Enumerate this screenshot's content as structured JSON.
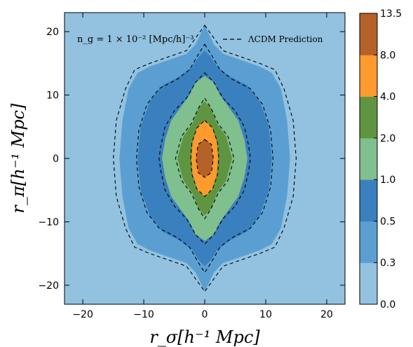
{
  "chart_data": {
    "type": "contour",
    "xlabel": "r_σ[h⁻¹ Mpc]",
    "ylabel": "r_π[h⁻¹ Mpc]",
    "xlim": [
      -23,
      23
    ],
    "ylim": [
      -23,
      23
    ],
    "x_ticks": [
      -20,
      -10,
      0,
      10,
      20
    ],
    "y_ticks": [
      -20,
      -10,
      0,
      10,
      20
    ],
    "x_tick_labels": [
      "−20",
      "−10",
      "0",
      "10",
      "20"
    ],
    "y_tick_labels": [
      "−20",
      "−10",
      "0",
      "10",
      "20"
    ],
    "annotation": "n_g = 1 × 10⁻² [Mpc/h]⁻³",
    "legend": {
      "placement": "top-right",
      "entries": [
        {
          "label": "ΛCDM Prediction",
          "style": "dashed"
        }
      ]
    },
    "colorbar": {
      "levels": [
        0.0,
        0.3,
        0.5,
        1.0,
        2.0,
        4.0,
        8.0,
        13.5
      ],
      "level_labels": [
        "0.0",
        "0.3",
        "0.5",
        "1.0",
        "2.0",
        "4.0",
        "8.0",
        "13.5"
      ],
      "colors": [
        "#92c2df",
        "#5b9fd2",
        "#3a7fbe",
        "#80bf8e",
        "#5f9540",
        "#ff9a2e",
        "#b4612a"
      ]
    },
    "regions": [
      {
        "level": 0.3,
        "outline": [
          [
            0,
            21
          ],
          [
            1.5,
            18
          ],
          [
            3,
            16.5
          ],
          [
            6,
            15.5
          ],
          [
            9,
            14.5
          ],
          [
            11,
            13.5
          ],
          [
            12.5,
            11
          ],
          [
            13.5,
            6
          ],
          [
            14,
            0
          ],
          [
            13.5,
            -6
          ],
          [
            12.5,
            -11
          ],
          [
            11,
            -13.5
          ],
          [
            9,
            -14.5
          ],
          [
            6,
            -15.5
          ],
          [
            3,
            -16.5
          ],
          [
            1.5,
            -18
          ],
          [
            0,
            -21
          ],
          [
            -1.5,
            -18
          ],
          [
            -3,
            -16.5
          ],
          [
            -6,
            -15.5
          ],
          [
            -9,
            -14.5
          ],
          [
            -11,
            -13.5
          ],
          [
            -12.5,
            -11
          ],
          [
            -13.5,
            -6
          ],
          [
            -14,
            0
          ],
          [
            -13.5,
            6
          ],
          [
            -12.5,
            11
          ],
          [
            -11,
            13.5
          ],
          [
            -9,
            14.5
          ],
          [
            -6,
            15.5
          ],
          [
            -3,
            16.5
          ],
          [
            -1.5,
            18
          ]
        ]
      },
      {
        "level": 0.5,
        "outline": [
          [
            0,
            17
          ],
          [
            1,
            16
          ],
          [
            2,
            14.5
          ],
          [
            4,
            13
          ],
          [
            7,
            11.5
          ],
          [
            9,
            9
          ],
          [
            10.5,
            5
          ],
          [
            11,
            0
          ],
          [
            10.5,
            -5
          ],
          [
            9,
            -9
          ],
          [
            7,
            -11.5
          ],
          [
            4,
            -13
          ],
          [
            2,
            -14.5
          ],
          [
            1,
            -16
          ],
          [
            0,
            -17
          ],
          [
            -1,
            -16
          ],
          [
            -2,
            -14.5
          ],
          [
            -4,
            -13
          ],
          [
            -7,
            -11.5
          ],
          [
            -9,
            -9
          ],
          [
            -10.5,
            -5
          ],
          [
            -11,
            0
          ],
          [
            -10.5,
            5
          ],
          [
            -9,
            9
          ],
          [
            -7,
            11.5
          ],
          [
            -4,
            13
          ],
          [
            -2,
            14.5
          ],
          [
            -1,
            16
          ]
        ]
      },
      {
        "level": 1.0,
        "outline": [
          [
            0,
            13
          ],
          [
            1.5,
            12
          ],
          [
            2.5,
            10
          ],
          [
            4,
            8
          ],
          [
            5.5,
            6
          ],
          [
            6.5,
            3
          ],
          [
            7,
            0
          ],
          [
            6.5,
            -3
          ],
          [
            5.5,
            -6
          ],
          [
            4,
            -8
          ],
          [
            2.5,
            -10
          ],
          [
            1.5,
            -12
          ],
          [
            0,
            -13
          ],
          [
            -1.5,
            -12
          ],
          [
            -2.5,
            -10
          ],
          [
            -4,
            -8
          ],
          [
            -5.5,
            -6
          ],
          [
            -6.5,
            -3
          ],
          [
            -7,
            0
          ],
          [
            -6.5,
            3
          ],
          [
            -5.5,
            6
          ],
          [
            -4,
            8
          ],
          [
            -2.5,
            10
          ],
          [
            -1.5,
            12
          ]
        ]
      },
      {
        "level": 2.0,
        "outline": [
          [
            0,
            9
          ],
          [
            1,
            8
          ],
          [
            2,
            5.5
          ],
          [
            3.5,
            3.5
          ],
          [
            4.5,
            0
          ],
          [
            3.5,
            -3.5
          ],
          [
            2,
            -5.5
          ],
          [
            1,
            -8
          ],
          [
            0,
            -9
          ],
          [
            -1,
            -8
          ],
          [
            -2,
            -5.5
          ],
          [
            -3.5,
            -3.5
          ],
          [
            -4.5,
            0
          ],
          [
            -3.5,
            3.5
          ],
          [
            -2,
            5.5
          ],
          [
            -1,
            8
          ]
        ]
      },
      {
        "level": 4.0,
        "outline": [
          [
            0,
            6
          ],
          [
            1.2,
            5
          ],
          [
            2,
            2.5
          ],
          [
            2.2,
            0
          ],
          [
            2,
            -2.5
          ],
          [
            1.2,
            -5
          ],
          [
            0,
            -6
          ],
          [
            -1.2,
            -5
          ],
          [
            -2,
            -2.5
          ],
          [
            -2.2,
            0
          ],
          [
            -2,
            2.5
          ],
          [
            -1.2,
            5
          ]
        ]
      },
      {
        "level": 8.0,
        "outline": [
          [
            0,
            3
          ],
          [
            1,
            2.3
          ],
          [
            1.4,
            0
          ],
          [
            1,
            -2.3
          ],
          [
            0,
            -3
          ],
          [
            -1,
            -2.3
          ],
          [
            -1.4,
            0
          ],
          [
            -1,
            2.3
          ]
        ]
      }
    ],
    "model_contours": [
      {
        "level": 0.3,
        "outline": [
          [
            0,
            21
          ],
          [
            1.5,
            19
          ],
          [
            3,
            17
          ],
          [
            6,
            16
          ],
          [
            9,
            15
          ],
          [
            11.5,
            14
          ],
          [
            13,
            11
          ],
          [
            14.5,
            6
          ],
          [
            15,
            0
          ],
          [
            14.5,
            -6
          ],
          [
            13,
            -11
          ],
          [
            11.5,
            -14
          ],
          [
            9,
            -15
          ],
          [
            6,
            -16
          ],
          [
            3,
            -17
          ],
          [
            1.5,
            -19
          ],
          [
            0,
            -21
          ],
          [
            -1.5,
            -19
          ],
          [
            -3,
            -17
          ],
          [
            -6,
            -16
          ],
          [
            -9,
            -15
          ],
          [
            -11.5,
            -14
          ],
          [
            -13,
            -11
          ],
          [
            -14.5,
            -6
          ],
          [
            -15,
            0
          ],
          [
            -14.5,
            6
          ],
          [
            -13,
            11
          ],
          [
            -11.5,
            14
          ],
          [
            -9,
            15
          ],
          [
            -6,
            16
          ],
          [
            -3,
            17
          ],
          [
            -1.5,
            19
          ]
        ]
      },
      {
        "level": 0.5,
        "outline": [
          [
            0,
            18
          ],
          [
            1,
            16.5
          ],
          [
            2.5,
            14
          ],
          [
            4.5,
            12.5
          ],
          [
            7.5,
            11
          ],
          [
            9.5,
            8.5
          ],
          [
            10.8,
            4.5
          ],
          [
            11.2,
            0
          ],
          [
            10.8,
            -4.5
          ],
          [
            9.5,
            -8.5
          ],
          [
            7.5,
            -11
          ],
          [
            4.5,
            -12.5
          ],
          [
            2.5,
            -14
          ],
          [
            1,
            -16.5
          ],
          [
            0,
            -18
          ],
          [
            -1,
            -16.5
          ],
          [
            -2.5,
            -14
          ],
          [
            -4.5,
            -12.5
          ],
          [
            -7.5,
            -11
          ],
          [
            -9.5,
            -8.5
          ],
          [
            -10.8,
            -4.5
          ],
          [
            -11.2,
            0
          ],
          [
            -10.8,
            4.5
          ],
          [
            -9.5,
            8.5
          ],
          [
            -7.5,
            11
          ],
          [
            -4.5,
            12.5
          ],
          [
            -2.5,
            14
          ],
          [
            -1,
            16.5
          ]
        ]
      },
      {
        "level": 1.0,
        "outline": [
          [
            0,
            13.5
          ],
          [
            1.5,
            12
          ],
          [
            3,
            9.5
          ],
          [
            5,
            7.5
          ],
          [
            6.5,
            5
          ],
          [
            7.2,
            2
          ],
          [
            7.5,
            0
          ],
          [
            7.2,
            -2
          ],
          [
            6.5,
            -5
          ],
          [
            5,
            -7.5
          ],
          [
            3,
            -9.5
          ],
          [
            1.5,
            -12
          ],
          [
            0,
            -13.5
          ],
          [
            -1.5,
            -12
          ],
          [
            -3,
            -9.5
          ],
          [
            -5,
            -7.5
          ],
          [
            -6.5,
            -5
          ],
          [
            -7.2,
            -2
          ],
          [
            -7.5,
            0
          ],
          [
            -7.2,
            2
          ],
          [
            -6.5,
            5
          ],
          [
            -5,
            7.5
          ],
          [
            -3,
            9.5
          ],
          [
            -1.5,
            12
          ]
        ]
      },
      {
        "level": 2.0,
        "outline": [
          [
            0,
            9.5
          ],
          [
            1,
            8
          ],
          [
            2.2,
            5.5
          ],
          [
            3.8,
            3.5
          ],
          [
            4.8,
            0
          ],
          [
            3.8,
            -3.5
          ],
          [
            2.2,
            -5.5
          ],
          [
            1,
            -8
          ],
          [
            0,
            -9.5
          ],
          [
            -1,
            -8
          ],
          [
            -2.2,
            -5.5
          ],
          [
            -3.8,
            -3.5
          ],
          [
            -4.8,
            0
          ],
          [
            -3.8,
            3.5
          ],
          [
            -2.2,
            5.5
          ],
          [
            -1,
            8
          ]
        ]
      },
      {
        "level": 4.0,
        "outline": [
          [
            0,
            6
          ],
          [
            1.3,
            4.8
          ],
          [
            2.1,
            2.5
          ],
          [
            2.3,
            0
          ],
          [
            2.1,
            -2.5
          ],
          [
            1.3,
            -4.8
          ],
          [
            0,
            -6
          ],
          [
            -1.3,
            -4.8
          ],
          [
            -2.1,
            -2.5
          ],
          [
            -2.3,
            0
          ],
          [
            -2.1,
            2.5
          ],
          [
            -1.3,
            4.8
          ]
        ]
      },
      {
        "level": 8.0,
        "outline": [
          [
            0,
            3
          ],
          [
            1.1,
            2.2
          ],
          [
            1.4,
            0
          ],
          [
            1.1,
            -2.2
          ],
          [
            0,
            -3
          ],
          [
            -1.1,
            -2.2
          ],
          [
            -1.4,
            0
          ],
          [
            -1.1,
            2.2
          ]
        ]
      }
    ]
  }
}
